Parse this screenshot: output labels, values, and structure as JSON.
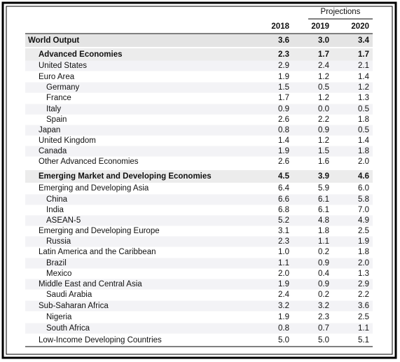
{
  "table": {
    "group_header": "Projections",
    "columns": [
      "2018",
      "2019",
      "2020"
    ],
    "rows": [
      [
        "World Output",
        "3.6",
        "3.0",
        "3.4"
      ],
      [
        "Advanced Economies",
        "2.3",
        "1.7",
        "1.7"
      ],
      [
        "United States",
        "2.9",
        "2.4",
        "2.1"
      ],
      [
        "Euro Area",
        "1.9",
        "1.2",
        "1.4"
      ],
      [
        "Germany",
        "1.5",
        "0.5",
        "1.2"
      ],
      [
        "France",
        "1.7",
        "1.2",
        "1.3"
      ],
      [
        "Italy",
        "0.9",
        "0.0",
        "0.5"
      ],
      [
        "Spain",
        "2.6",
        "2.2",
        "1.8"
      ],
      [
        "Japan",
        "0.8",
        "0.9",
        "0.5"
      ],
      [
        "United Kingdom",
        "1.4",
        "1.2",
        "1.4"
      ],
      [
        "Canada",
        "1.9",
        "1.5",
        "1.8"
      ],
      [
        "Other Advanced Economies",
        "2.6",
        "1.6",
        "2.0"
      ],
      [
        "Emerging Market and Developing Economies",
        "4.5",
        "3.9",
        "4.6"
      ],
      [
        "Emerging and Developing Asia",
        "6.4",
        "5.9",
        "6.0"
      ],
      [
        "China",
        "6.6",
        "6.1",
        "5.8"
      ],
      [
        "India",
        "6.8",
        "6.1",
        "7.0"
      ],
      [
        "ASEAN-5",
        "5.2",
        "4.8",
        "4.9"
      ],
      [
        "Emerging and Developing Europe",
        "3.1",
        "1.8",
        "2.5"
      ],
      [
        "Russia",
        "2.3",
        "1.1",
        "1.9"
      ],
      [
        "Latin America and the Caribbean",
        "1.0",
        "0.2",
        "1.8"
      ],
      [
        "Brazil",
        "1.1",
        "0.9",
        "2.0"
      ],
      [
        "Mexico",
        "2.0",
        "0.4",
        "1.3"
      ],
      [
        "Middle East and Central Asia",
        "1.9",
        "0.9",
        "2.9"
      ],
      [
        "Saudi Arabia",
        "2.4",
        "0.2",
        "2.2"
      ],
      [
        "Sub-Saharan Africa",
        "3.2",
        "3.2",
        "3.6"
      ],
      [
        "Nigeria",
        "1.9",
        "2.3",
        "2.5"
      ],
      [
        "South Africa",
        "0.8",
        "0.7",
        "1.1"
      ],
      [
        "Low-Income Developing Countries",
        "5.0",
        "5.0",
        "5.1"
      ]
    ]
  }
}
